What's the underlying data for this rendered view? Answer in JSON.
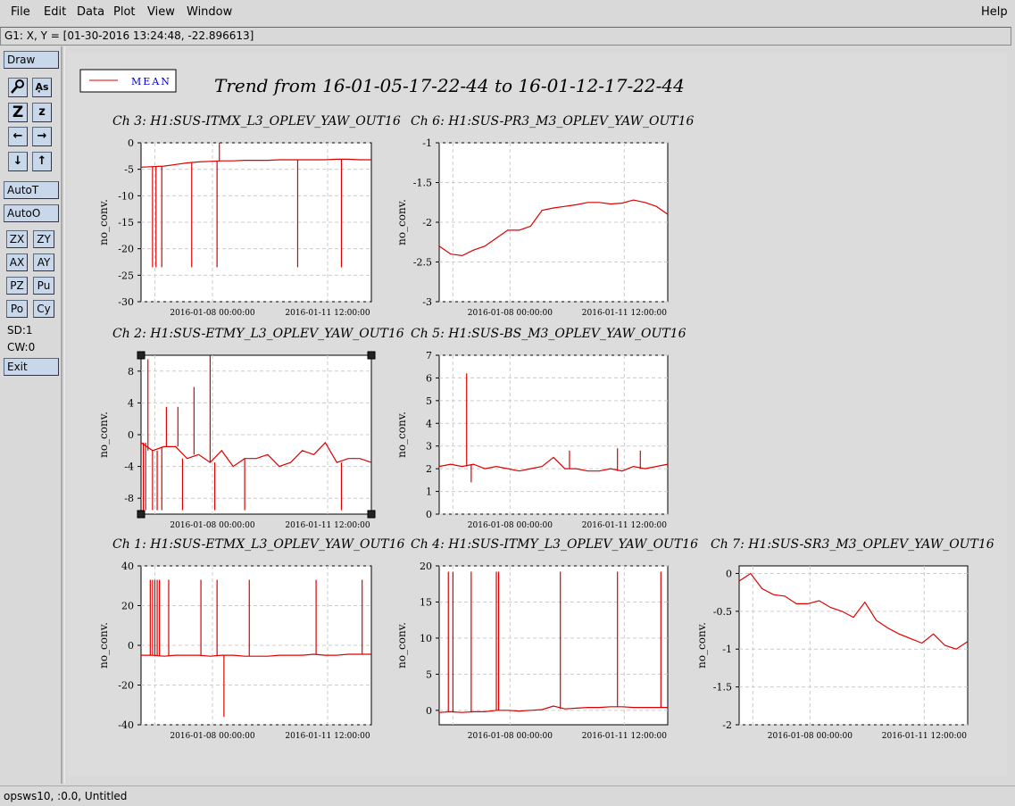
{
  "menu": {
    "file": "File",
    "edit": "Edit",
    "data": "Data",
    "plot": "Plot",
    "view": "View",
    "window": "Window",
    "help": "Help"
  },
  "coord_readout": "G1: X, Y = [01-30-2016 13:24:48, -22.896613]",
  "toolbar": {
    "draw": "Draw",
    "autoT": "AutoT",
    "autoO": "AutoO",
    "zx": "ZX",
    "zy": "ZY",
    "ax": "AX",
    "ay": "AY",
    "pz": "PZ",
    "pu": "Pu",
    "po": "Po",
    "cy": "Cy",
    "sd": "SD:1",
    "cw": "CW:0",
    "exit": "Exit",
    "icon_z_big": "Z",
    "icon_z_small": "z",
    "icon_left": "←",
    "icon_right": "→",
    "icon_down": "↓",
    "icon_up": "↑",
    "icon_as": "A͓s"
  },
  "legend": {
    "label": "MEAN",
    "color": "#dd0000"
  },
  "title": "Trend from 16-01-05-17-22-44 to 16-01-12-17-22-44",
  "status": "opsws10, :0.0, Untitled",
  "colors": {
    "trace": "#dd0000",
    "accent": "#c8d8ea"
  },
  "chart_data": [
    {
      "type": "line",
      "title": "Ch 3: H1:SUS-ITMX_L3_OPLEV_YAW_OUT16",
      "ylabel": "no_conv.",
      "ylim": [
        -30,
        0
      ],
      "yticks": [
        0,
        -5,
        -10,
        -15,
        -20,
        -25,
        -30
      ],
      "xticks": [
        "2016-01-08 00:00:00",
        "2016-01-11 12:00:00"
      ],
      "grid": true,
      "series": [
        {
          "values": [
            -4.6,
            -4.5,
            -4.4,
            -4.1,
            -3.8,
            -3.6,
            -3.5,
            -3.4,
            -3.4,
            -3.3,
            -3.3,
            -3.3,
            -3.2,
            -3.2,
            -3.2,
            -3.2,
            -3.2,
            -3.1,
            -3.1,
            -3.2,
            -3.2
          ]
        }
      ]
    },
    {
      "type": "line",
      "title": "Ch 6: H1:SUS-PR3_M3_OPLEV_YAW_OUT16",
      "ylabel": "no_conv.",
      "ylim": [
        -3,
        -1
      ],
      "yticks": [
        -1,
        -1.5,
        -2,
        -2.5,
        -3
      ],
      "xticks": [
        "2016-01-08 00:00:00",
        "2016-01-11 12:00:00"
      ],
      "grid": true,
      "series": [
        {
          "values": [
            -2.3,
            -2.4,
            -2.42,
            -2.35,
            -2.3,
            -2.2,
            -2.1,
            -2.1,
            -2.05,
            -1.85,
            -1.82,
            -1.8,
            -1.78,
            -1.75,
            -1.75,
            -1.77,
            -1.76,
            -1.72,
            -1.75,
            -1.8,
            -1.9
          ]
        }
      ]
    },
    {
      "type": "line",
      "title": "Ch 2: H1:SUS-ETMY_L3_OPLEV_YAW_OUT16",
      "ylabel": "no_conv.",
      "ylim": [
        -10,
        10
      ],
      "yticks": [
        8,
        4,
        0,
        -4,
        -8
      ],
      "xticks": [
        "2016-01-08 00:00:00",
        "2016-01-11 12:00:00"
      ],
      "grid": true,
      "series": [
        {
          "values": [
            -1,
            -2,
            -1.5,
            -1.5,
            -3,
            -2.5,
            -3.5,
            -2,
            -4,
            -3,
            -3,
            -2.5,
            -4,
            -3.5,
            -2,
            -2.5,
            -1,
            -3.5,
            -3,
            -3,
            -3.5
          ]
        }
      ]
    },
    {
      "type": "line",
      "title": "Ch 5: H1:SUS-BS_M3_OPLEV_YAW_OUT16",
      "ylabel": "no_conv.",
      "ylim": [
        0,
        7
      ],
      "yticks": [
        7,
        6,
        5,
        4,
        3,
        2,
        1,
        0
      ],
      "xticks": [
        "2016-01-08 00:00:00",
        "2016-01-11 12:00:00"
      ],
      "grid": true,
      "series": [
        {
          "values": [
            2.1,
            2.2,
            2.1,
            2.2,
            2.0,
            2.1,
            2.0,
            1.9,
            2.0,
            2.1,
            2.5,
            2.0,
            2.0,
            1.9,
            1.9,
            2.0,
            1.9,
            2.1,
            2.0,
            2.1,
            2.2
          ]
        }
      ]
    },
    {
      "type": "line",
      "title": "Ch 1: H1:SUS-ETMX_L3_OPLEV_YAW_OUT16",
      "ylabel": "no_conv.",
      "ylim": [
        -40,
        40
      ],
      "yticks": [
        40,
        20,
        0,
        -20,
        -40
      ],
      "xticks": [
        "2016-01-08 00:00:00",
        "2016-01-11 12:00:00"
      ],
      "grid": true,
      "series": [
        {
          "values": [
            -5,
            -5,
            -5.5,
            -5,
            -5,
            -5,
            -5.5,
            -5,
            -5,
            -5.5,
            -5.5,
            -5.5,
            -5,
            -5,
            -5,
            -4.5,
            -5,
            -5,
            -4.5,
            -4.5,
            -4.5
          ]
        }
      ]
    },
    {
      "type": "line",
      "title": "Ch 4: H1:SUS-ITMY_L3_OPLEV_YAW_OUT16",
      "ylabel": "no_conv.",
      "ylim": [
        -2,
        20
      ],
      "yticks": [
        20,
        15,
        10,
        5,
        0
      ],
      "xticks": [
        "2016-01-08 00:00:00",
        "2016-01-11 12:00:00"
      ],
      "grid": true,
      "series": [
        {
          "values": [
            -0.3,
            -0.2,
            -0.3,
            -0.2,
            -0.2,
            0,
            0,
            -0.1,
            0,
            0.1,
            0.6,
            0.2,
            0.3,
            0.4,
            0.4,
            0.5,
            0.5,
            0.4,
            0.4,
            0.4,
            0.4
          ]
        }
      ]
    },
    {
      "type": "line",
      "title": "Ch 7: H1:SUS-SR3_M3_OPLEV_YAW_OUT16",
      "ylabel": "no_conv.",
      "ylim": [
        -2,
        0.1
      ],
      "yticks": [
        0,
        -0.5,
        -1,
        -1.5,
        -2
      ],
      "xticks": [
        "2016-01-08 00:00:00",
        "2016-01-11 12:00:00"
      ],
      "grid": true,
      "series": [
        {
          "values": [
            -0.1,
            0,
            -0.2,
            -0.28,
            -0.3,
            -0.4,
            -0.4,
            -0.36,
            -0.45,
            -0.5,
            -0.58,
            -0.38,
            -0.62,
            -0.72,
            -0.8,
            -0.86,
            -0.92,
            -0.8,
            -0.95,
            -1.0,
            -0.9
          ]
        }
      ]
    }
  ]
}
